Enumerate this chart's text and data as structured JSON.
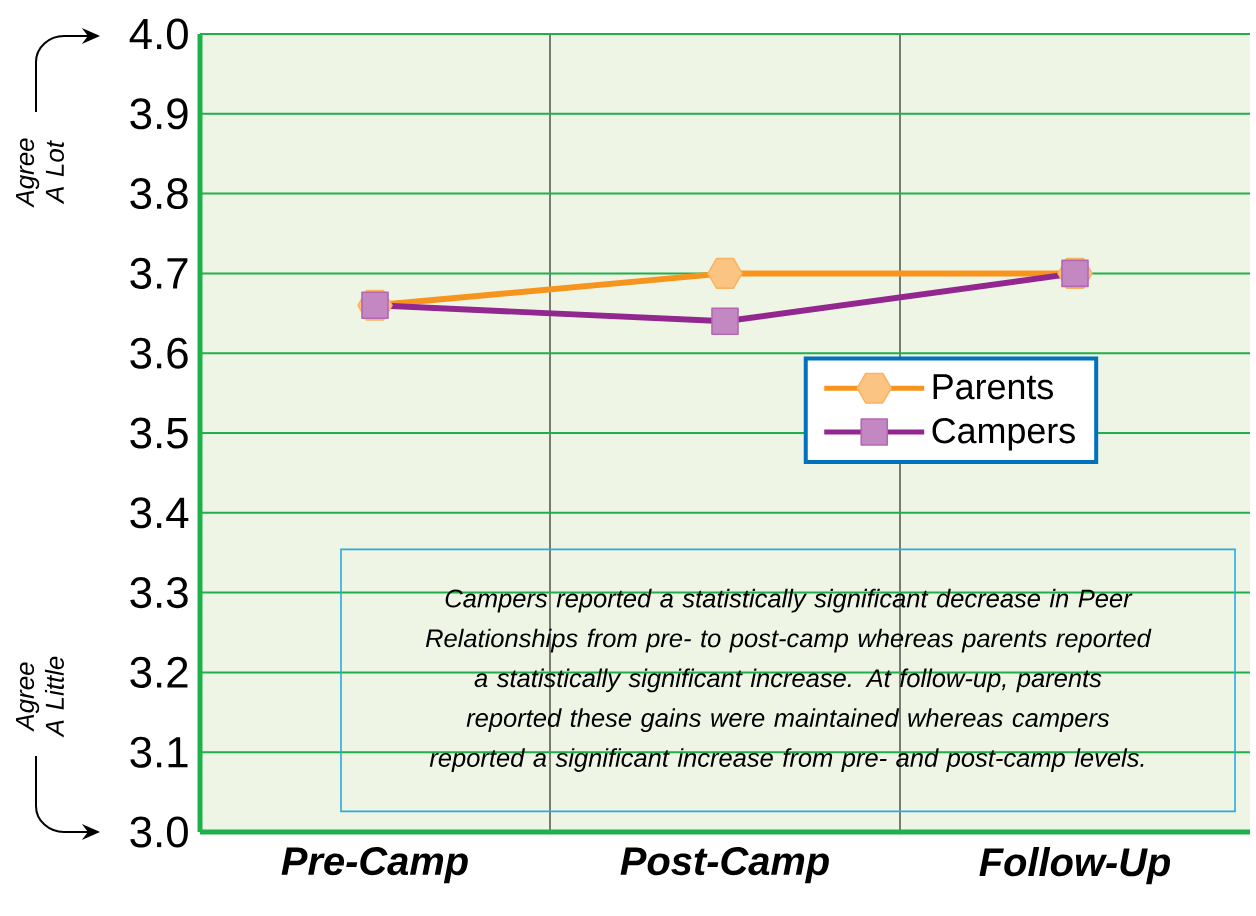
{
  "chart_data": {
    "type": "line",
    "categories": [
      "Pre-Camp",
      "Post-Camp",
      "Follow-Up"
    ],
    "series": [
      {
        "name": "Parents",
        "color": "#f7941d",
        "marker": "circle",
        "values": [
          3.66,
          3.7,
          3.7
        ]
      },
      {
        "name": "Campers",
        "color": "#92278f",
        "marker": "square",
        "values": [
          3.66,
          3.64,
          3.7
        ]
      }
    ],
    "ylim": [
      3.0,
      4.0
    ],
    "yticks": [
      {
        "value": 3.0,
        "label": "3.0"
      },
      3.1,
      3.2,
      3.3,
      3.4,
      3.5,
      3.6,
      3.7,
      3.8,
      3.9,
      {
        "value": 4.0,
        "label": "4.0"
      }
    ],
    "grid": "y",
    "legend": "right",
    "annotations": [
      "Agree A Lot",
      "Agree A Little",
      "Campers reported a statistically significant decrease in Peer Relationships from pre- to post-camp whereas parents reported a statistically significant increase.  At follow-up, parents reported these gains were maintained whereas campers reported a significant increase from pre- and post-camp levels."
    ]
  }
}
